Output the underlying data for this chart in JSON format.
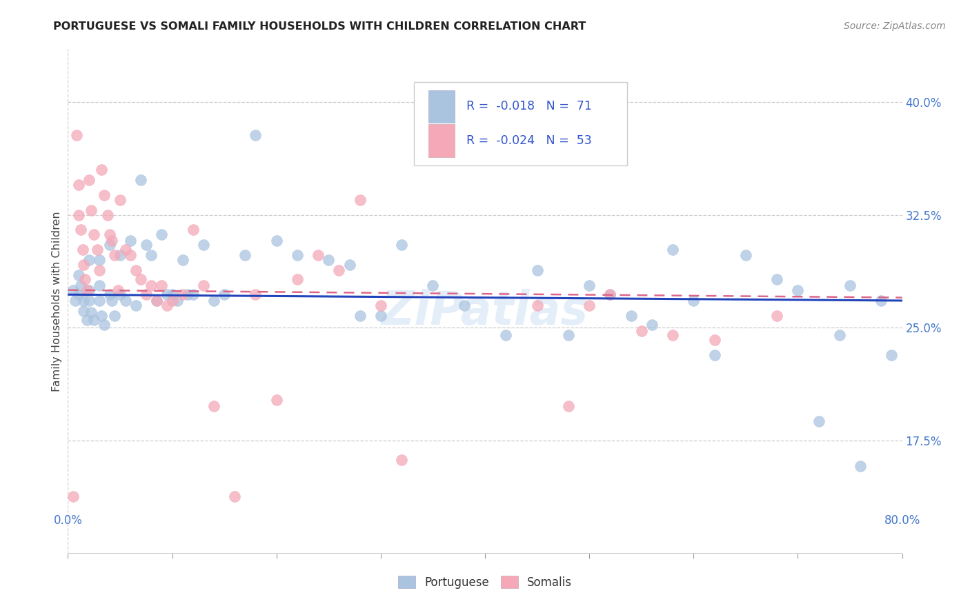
{
  "title": "PORTUGUESE VS SOMALI FAMILY HOUSEHOLDS WITH CHILDREN CORRELATION CHART",
  "source": "Source: ZipAtlas.com",
  "ylabel": "Family Households with Children",
  "watermark": "ZiPatlas",
  "legend_r_portuguese": "-0.018",
  "legend_n_portuguese": "71",
  "legend_r_somali": "-0.024",
  "legend_n_somali": "53",
  "portuguese_color": "#aac4e0",
  "somali_color": "#f4a8b8",
  "trend_portuguese_color": "#2244bb",
  "trend_somali_color": "#dd6688",
  "xlim": [
    0.0,
    0.8
  ],
  "ylim": [
    0.1,
    0.435
  ],
  "ytick_pos": [
    0.175,
    0.25,
    0.325,
    0.4
  ],
  "ytick_labels": [
    "17.5%",
    "25.0%",
    "32.5%",
    "40.0%"
  ],
  "xtick_pos": [
    0.0,
    0.1,
    0.2,
    0.3,
    0.4,
    0.5,
    0.6,
    0.7,
    0.8
  ],
  "portuguese_x": [
    0.005,
    0.007,
    0.01,
    0.01,
    0.012,
    0.015,
    0.015,
    0.018,
    0.02,
    0.02,
    0.02,
    0.022,
    0.025,
    0.03,
    0.03,
    0.03,
    0.032,
    0.035,
    0.04,
    0.04,
    0.042,
    0.045,
    0.05,
    0.05,
    0.055,
    0.06,
    0.065,
    0.07,
    0.075,
    0.08,
    0.085,
    0.09,
    0.095,
    0.1,
    0.105,
    0.11,
    0.115,
    0.12,
    0.13,
    0.14,
    0.15,
    0.17,
    0.18,
    0.2,
    0.22,
    0.25,
    0.27,
    0.28,
    0.3,
    0.32,
    0.35,
    0.38,
    0.42,
    0.45,
    0.48,
    0.5,
    0.52,
    0.54,
    0.56,
    0.58,
    0.6,
    0.62,
    0.65,
    0.68,
    0.7,
    0.72,
    0.74,
    0.75,
    0.76,
    0.78,
    0.79
  ],
  "portuguese_y": [
    0.275,
    0.268,
    0.285,
    0.272,
    0.278,
    0.268,
    0.261,
    0.255,
    0.295,
    0.275,
    0.268,
    0.26,
    0.255,
    0.295,
    0.278,
    0.268,
    0.258,
    0.252,
    0.305,
    0.272,
    0.268,
    0.258,
    0.298,
    0.272,
    0.268,
    0.308,
    0.265,
    0.348,
    0.305,
    0.298,
    0.268,
    0.312,
    0.272,
    0.272,
    0.268,
    0.295,
    0.272,
    0.272,
    0.305,
    0.268,
    0.272,
    0.298,
    0.378,
    0.308,
    0.298,
    0.295,
    0.292,
    0.258,
    0.258,
    0.305,
    0.278,
    0.265,
    0.245,
    0.288,
    0.245,
    0.278,
    0.272,
    0.258,
    0.252,
    0.302,
    0.268,
    0.232,
    0.298,
    0.282,
    0.275,
    0.188,
    0.245,
    0.278,
    0.158,
    0.268,
    0.232
  ],
  "somali_x": [
    0.005,
    0.008,
    0.01,
    0.01,
    0.012,
    0.014,
    0.015,
    0.016,
    0.018,
    0.02,
    0.022,
    0.025,
    0.028,
    0.03,
    0.032,
    0.035,
    0.038,
    0.04,
    0.042,
    0.045,
    0.048,
    0.05,
    0.055,
    0.06,
    0.065,
    0.07,
    0.075,
    0.08,
    0.085,
    0.09,
    0.095,
    0.1,
    0.11,
    0.12,
    0.13,
    0.14,
    0.16,
    0.18,
    0.2,
    0.22,
    0.24,
    0.26,
    0.28,
    0.3,
    0.32,
    0.45,
    0.48,
    0.5,
    0.52,
    0.55,
    0.58,
    0.62,
    0.68
  ],
  "somali_y": [
    0.138,
    0.378,
    0.345,
    0.325,
    0.315,
    0.302,
    0.292,
    0.282,
    0.275,
    0.348,
    0.328,
    0.312,
    0.302,
    0.288,
    0.355,
    0.338,
    0.325,
    0.312,
    0.308,
    0.298,
    0.275,
    0.335,
    0.302,
    0.298,
    0.288,
    0.282,
    0.272,
    0.278,
    0.268,
    0.278,
    0.265,
    0.268,
    0.272,
    0.315,
    0.278,
    0.198,
    0.138,
    0.272,
    0.202,
    0.282,
    0.298,
    0.288,
    0.335,
    0.265,
    0.162,
    0.265,
    0.198,
    0.265,
    0.272,
    0.248,
    0.245,
    0.242,
    0.258
  ],
  "port_trend_x0": 0.0,
  "port_trend_y0": 0.272,
  "port_trend_x1": 0.8,
  "port_trend_y1": 0.268,
  "som_trend_x0": 0.0,
  "som_trend_y0": 0.275,
  "som_trend_x1": 0.8,
  "som_trend_y1": 0.27
}
